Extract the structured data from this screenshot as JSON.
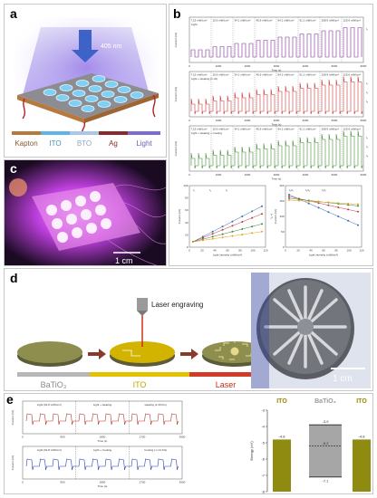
{
  "panels": {
    "a": {
      "label": "a",
      "wavelength": "405 nm",
      "legend": [
        "Kapton",
        "ITO",
        "BTO",
        "Ag",
        "Light"
      ],
      "colors": {
        "Kapton": "#b8793f",
        "ITO": "#5fb3e6",
        "BTO": "#a9c7e6",
        "Ag": "#8b2a2a",
        "Light": "#7a6cd0"
      }
    },
    "b": {
      "label": "b",
      "intensities": [
        "7.15 mW/cm²",
        "15.6 mW/cm²",
        "34.1 mW/cm²",
        "45.6 mW/cm²",
        "54.1 mW/cm²",
        "61.1 mW/cm²",
        "108.9 mW/cm²",
        "125.6 mW/cm²"
      ],
      "row_colors": [
        "#7a2f8f",
        "#c23a3a",
        "#4a8a3a"
      ],
      "row_legends": [
        "Light",
        "Light + Heating (1 Hz)",
        "Light + Heating + Cooling"
      ],
      "xlabel": "Time (s)",
      "ylabel": "Current (nA)",
      "xticks": [
        "0",
        "1000",
        "2000",
        "3000",
        "4000",
        "5000",
        "6000"
      ],
      "current_labels": [
        "I₁",
        "I₂",
        "I₃"
      ]
    },
    "b_bottom": {
      "left_legend": [
        "I₁",
        "I₂",
        "I₃"
      ],
      "left_xlabel": "Light intensity (mW/cm²)",
      "left_ylabel": "Current (nA)",
      "left_y2label": "I₂ / I₁",
      "right_legend": [
        "I₁/I₃",
        "I₂/I₃",
        "I₁/I₂"
      ],
      "right_xlabel": "Light intensity (mW/cm²)",
      "right_ylabel": "Current (nA)",
      "xticks": [
        "0",
        "20",
        "40",
        "60",
        "80",
        "100",
        "120"
      ],
      "left_yticks": [
        "0",
        "20",
        "40",
        "60",
        "80",
        "100"
      ],
      "right_yticks": [
        "0",
        "50",
        "100",
        "150",
        "200"
      ]
    },
    "c": {
      "label": "c",
      "scale": "1 cm"
    },
    "d": {
      "label": "d",
      "laser_label": "Laser engraving",
      "legend": [
        "BaTiO₃",
        "ITO",
        "Laser"
      ],
      "colors": {
        "BaTiO3": "#6f7045",
        "ITO": "#e4c200",
        "Laser": "#d13b2a"
      },
      "scale": "1 cm"
    },
    "e": {
      "label": "e",
      "top_titles": [
        "Light (61.8 mW/cm²)",
        "Light + Heating",
        "Heating (1.33 K/s)"
      ],
      "bottom_titles": [
        "Light (61.8 mW/cm²)",
        "Light + Cooling",
        "Cooling (-1.14 K/s)"
      ],
      "xticks": [
        "0",
        "900",
        "1800",
        "2700",
        "3600"
      ],
      "xlabel": "Time (s)",
      "ylabel": "Current (nA)"
    },
    "energy": {
      "col_labels": [
        "ITO",
        "BaTiO₃",
        "ITO"
      ],
      "ylabel": "Energy (eV)",
      "yticks": [
        "-3",
        "-4",
        "-5",
        "-6",
        "-7",
        "-8"
      ],
      "values": {
        "ito_left": "-4.8",
        "bto_top": "-3.9",
        "bto_mid": "-5.2",
        "bto_bottom": "-7.1",
        "ito_right": "-4.8"
      },
      "chart_data": {
        "type": "bar",
        "categories": [
          "ITO",
          "BaTiO₃",
          "ITO"
        ],
        "values": [
          -4.8,
          -3.9,
          -4.8
        ],
        "ylabel": "Energy (eV)",
        "ylim": [
          -8,
          -3
        ]
      }
    }
  }
}
